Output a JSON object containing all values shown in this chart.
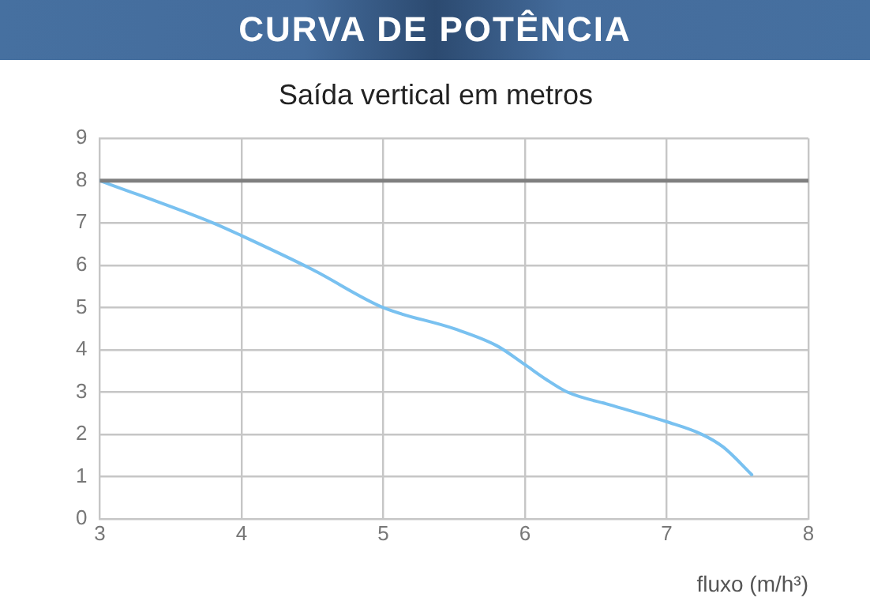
{
  "chart_data": {
    "type": "line",
    "title": "CURVA DE POTÊNCIA",
    "subtitle": "Saída vertical em metros",
    "xlabel": "fluxo (m/h³)",
    "x": [
      3,
      3.8,
      4,
      4.5,
      5,
      5.5,
      5.8,
      6,
      6.15,
      6.3,
      6.6,
      7,
      7.25,
      7.4,
      7.6
    ],
    "series": [
      {
        "color": "#79c1f0",
        "values": [
          8,
          7.0,
          6.7,
          5.9,
          5.0,
          4.5,
          4.1,
          3.65,
          3.3,
          3.0,
          2.7,
          2.3,
          2.0,
          1.7,
          1.05
        ]
      }
    ],
    "xlim": [
      3,
      8
    ],
    "xticks": [
      3,
      4,
      5,
      6,
      7,
      8
    ],
    "ylim": [
      0,
      9
    ],
    "yticks": [
      0,
      1,
      2,
      3,
      4,
      5,
      6,
      7,
      8,
      9
    ],
    "ref_lines": [
      {
        "axis": "y",
        "value": 8,
        "color": "#7f7f7f"
      }
    ],
    "grid": true,
    "legend": false,
    "marker": "none",
    "line_style": "solid"
  }
}
